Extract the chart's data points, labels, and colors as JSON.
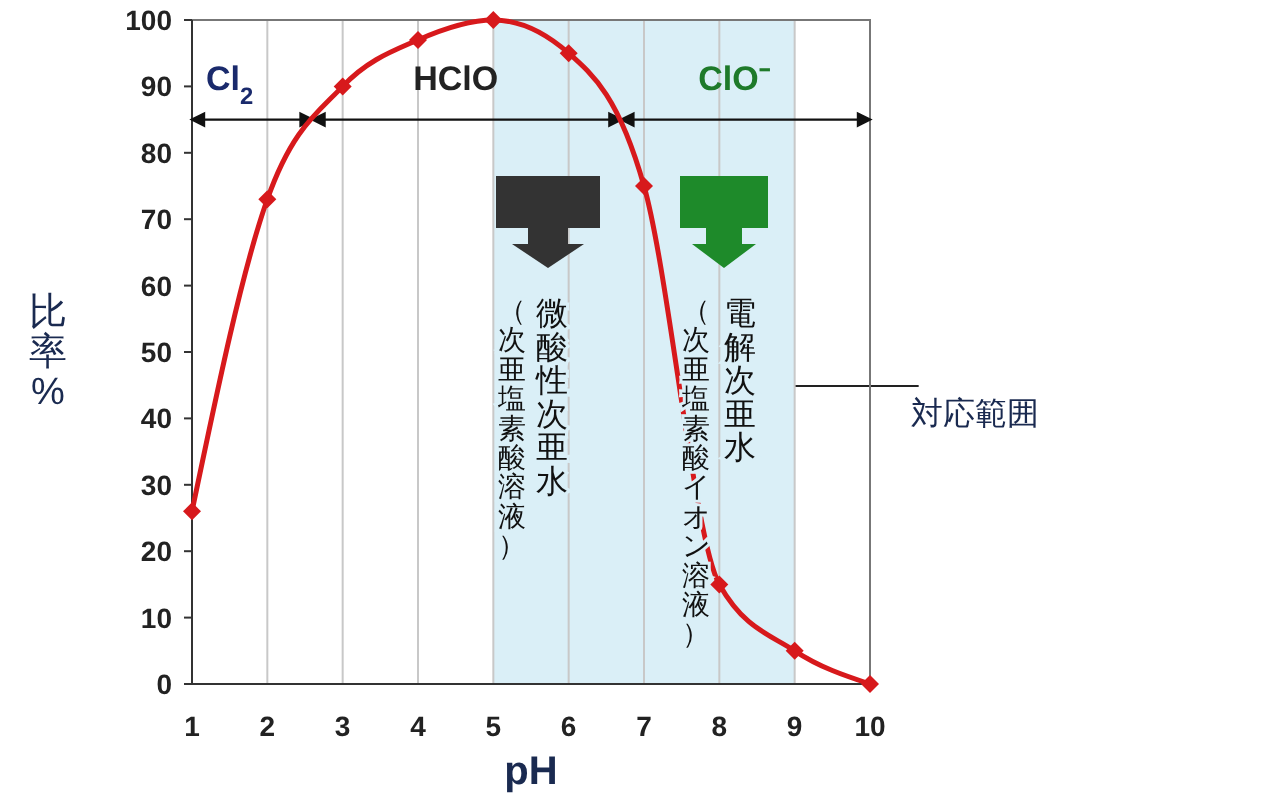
{
  "chart_data": {
    "type": "line",
    "xlabel": "pH",
    "ylabel": "比率%",
    "x": [
      1,
      2,
      3,
      4,
      5,
      6,
      7,
      8,
      9,
      10
    ],
    "series": [
      {
        "color": "#d7191c",
        "values": [
          26,
          73,
          90,
          97,
          100,
          95,
          75,
          15,
          5,
          0
        ]
      }
    ],
    "xlim": [
      1,
      10
    ],
    "xticks": [
      1,
      2,
      3,
      4,
      5,
      6,
      7,
      8,
      9,
      10
    ],
    "ylim": [
      0,
      100
    ],
    "yticks": [
      0,
      10,
      20,
      30,
      40,
      50,
      60,
      70,
      80,
      90,
      100
    ],
    "grid": "x",
    "marker": "diamond",
    "line_style": "solid",
    "bands": [
      {
        "axis": "x",
        "from": 5,
        "to": 9,
        "label": "対応範囲",
        "color": "#daeff7"
      }
    ],
    "annotations": [
      "Cl$_{2}$",
      "HClO",
      "ClO⁻",
      "微酸性次亜水",
      "（次亜塩素酸溶液）",
      "電解次亜水",
      "（次亜塩素酸イオン溶液）"
    ]
  }
}
